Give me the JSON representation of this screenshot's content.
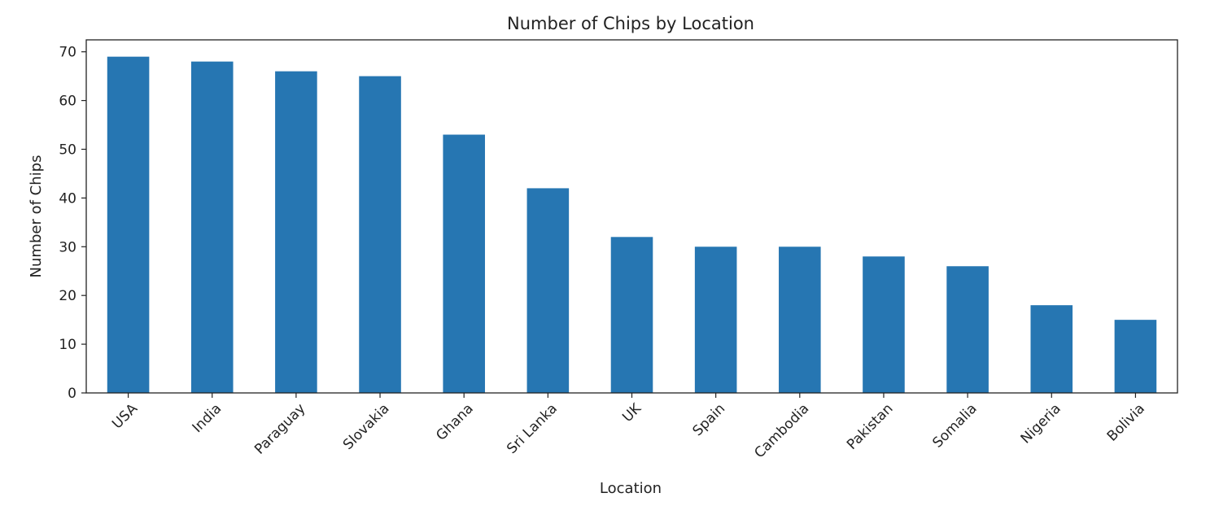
{
  "chart_data": {
    "type": "bar",
    "title": "Number of Chips by Location",
    "xlabel": "Location",
    "ylabel": "Number of Chips",
    "categories": [
      "USA",
      "India",
      "Paraguay",
      "Slovakia",
      "Ghana",
      "Sri Lanka",
      "UK",
      "Spain",
      "Cambodia",
      "Pakistan",
      "Somalia",
      "Nigeria",
      "Bolivia"
    ],
    "values": [
      69,
      68,
      66,
      65,
      53,
      42,
      32,
      30,
      30,
      28,
      26,
      18,
      15
    ],
    "ylim": [
      0,
      72.45
    ],
    "yticks": [
      0,
      10,
      20,
      30,
      40,
      50,
      60,
      70
    ],
    "grid": false,
    "legend": "none",
    "bar_color": "#2676b2",
    "xtick_rotation_deg": 45
  }
}
